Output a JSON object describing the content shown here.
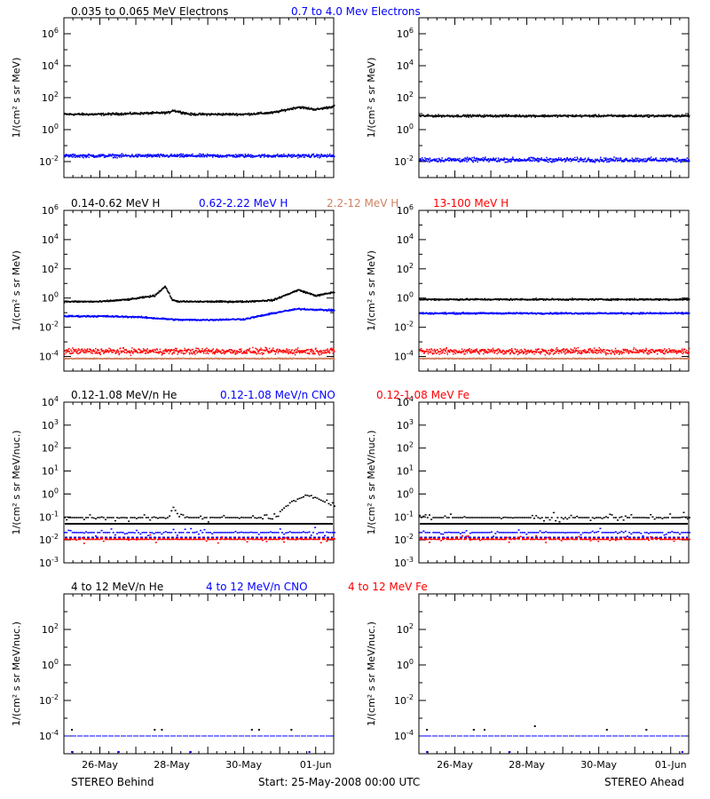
{
  "colors": {
    "black": "#000000",
    "blue": "#0000ff",
    "red": "#ff0000",
    "brown": "#d08060"
  },
  "rows": [
    {
      "legend": [
        {
          "text": "0.035 to 0.065 MeV Electrons",
          "color": "black"
        },
        {
          "text": "0.7 to 4.0 Mev Electrons",
          "color": "blue"
        }
      ]
    },
    {
      "legend": [
        {
          "text": "0.14-0.62 MeV H",
          "color": "black"
        },
        {
          "text": "0.62-2.22 MeV H",
          "color": "blue"
        },
        {
          "text": "2.2-12 MeV H",
          "color": "brown"
        },
        {
          "text": "13-100 MeV H",
          "color": "red"
        }
      ]
    },
    {
      "legend": [
        {
          "text": "0.12-1.08 MeV/n He",
          "color": "black"
        },
        {
          "text": "0.12-1.08 MeV/n CNO",
          "color": "blue"
        },
        {
          "text": "0.12-1.08 MeV Fe",
          "color": "red"
        }
      ]
    },
    {
      "legend": [
        {
          "text": "4 to 12 MeV/n He",
          "color": "black"
        },
        {
          "text": "4 to 12 MeV/n CNO",
          "color": "blue"
        },
        {
          "text": "4 to 12 MeV Fe",
          "color": "red"
        }
      ]
    }
  ],
  "footer": {
    "left": "STEREO Behind",
    "center": "Start: 25-May-2008 00:00 UTC",
    "right": "STEREO Ahead"
  },
  "chart_data": [
    {
      "type": "scatter",
      "panel": "electrons-behind",
      "spacecraft": "STEREO Behind",
      "ylabel": "1/(cm² s sr MeV)",
      "yscale": "log",
      "ylim_exp": [
        -3,
        7
      ],
      "ytick_exps": [
        -2,
        0,
        2,
        4,
        6
      ],
      "xlim_days": [
        0,
        7.5
      ],
      "series": [
        {
          "name": "0.035 to 0.065 MeV Electrons",
          "color": "black",
          "x": [
            0,
            1,
            2,
            2.9,
            3.0,
            3.5,
            4,
            5,
            5.8,
            6.5,
            7,
            7.5
          ],
          "log10_y": [
            1.0,
            1.0,
            1.05,
            1.1,
            1.25,
            1.0,
            1.0,
            1.0,
            1.1,
            1.45,
            1.3,
            1.5
          ],
          "scatter_decades": 0.1
        },
        {
          "name": "0.7 to 4.0 Mev Electrons",
          "color": "blue",
          "x": [
            0,
            1,
            2,
            3,
            4,
            5,
            6,
            7,
            7.5
          ],
          "log10_y": [
            -1.6,
            -1.6,
            -1.6,
            -1.6,
            -1.6,
            -1.6,
            -1.6,
            -1.6,
            -1.6
          ],
          "scatter_decades": 0.15
        }
      ]
    },
    {
      "type": "scatter",
      "panel": "electrons-ahead",
      "spacecraft": "STEREO Ahead",
      "ylabel": "1/(cm² s sr MeV)",
      "yscale": "log",
      "ylim_exp": [
        -3,
        7
      ],
      "ytick_exps": [
        -2,
        0,
        2,
        4,
        6
      ],
      "xlim_days": [
        0,
        7.5
      ],
      "series": [
        {
          "name": "0.035 to 0.065 MeV Electrons",
          "color": "black",
          "x": [
            0,
            2,
            4,
            6,
            7.5
          ],
          "log10_y": [
            0.9,
            0.9,
            0.9,
            0.9,
            0.9
          ],
          "scatter_decades": 0.1
        },
        {
          "name": "0.7 to 4.0 Mev Electrons",
          "color": "blue",
          "x": [
            0,
            2,
            4,
            6,
            7.5
          ],
          "log10_y": [
            -1.85,
            -1.85,
            -1.85,
            -1.85,
            -1.85
          ],
          "scatter_decades": 0.2
        }
      ]
    },
    {
      "type": "scatter",
      "panel": "protons-behind",
      "spacecraft": "STEREO Behind",
      "ylabel": "1/(cm² s sr MeV)",
      "yscale": "log",
      "ylim_exp": [
        -5,
        6
      ],
      "ytick_exps": [
        -4,
        -2,
        0,
        2,
        4,
        6
      ],
      "xlim_days": [
        0,
        7.5
      ],
      "series": [
        {
          "name": "0.14-0.62 MeV H",
          "color": "black",
          "x": [
            0,
            1,
            1.8,
            2.5,
            2.8,
            3.0,
            3.2,
            4,
            5,
            5.8,
            6.5,
            7,
            7.5
          ],
          "log10_y": [
            -0.2,
            -0.2,
            -0.05,
            0.2,
            0.85,
            -0.1,
            -0.2,
            -0.2,
            -0.2,
            -0.1,
            0.6,
            0.2,
            0.45
          ],
          "scatter_decades": 0.08
        },
        {
          "name": "0.62-2.22 MeV H",
          "color": "blue",
          "x": [
            0,
            1,
            2,
            3.2,
            4,
            5,
            6,
            6.5,
            7.5
          ],
          "log10_y": [
            -1.2,
            -1.2,
            -1.25,
            -1.45,
            -1.45,
            -1.4,
            -0.9,
            -0.7,
            -0.8
          ],
          "scatter_decades": 0.08
        },
        {
          "name": "2.2-12 MeV H",
          "color": "brown",
          "x": [
            0,
            7.5
          ],
          "log10_y": [
            -4.1,
            -4.1
          ],
          "scatter_decades": 0.05
        },
        {
          "name": "13-100 MeV H",
          "color": "red",
          "x": [
            0,
            7.5
          ],
          "log10_y": [
            -3.6,
            -3.6
          ],
          "scatter_decades": 0.3
        }
      ]
    },
    {
      "type": "scatter",
      "panel": "protons-ahead",
      "spacecraft": "STEREO Ahead",
      "ylabel": "1/(cm² s sr MeV)",
      "yscale": "log",
      "ylim_exp": [
        -5,
        6
      ],
      "ytick_exps": [
        -4,
        -2,
        0,
        2,
        4,
        6
      ],
      "xlim_days": [
        0,
        7.5
      ],
      "series": [
        {
          "name": "0.14-0.62 MeV H",
          "color": "black",
          "x": [
            0,
            7.5
          ],
          "log10_y": [
            -0.05,
            -0.05
          ],
          "scatter_decades": 0.08
        },
        {
          "name": "0.62-2.22 MeV H",
          "color": "blue",
          "x": [
            0,
            7.5
          ],
          "log10_y": [
            -1.0,
            -1.0
          ],
          "scatter_decades": 0.08
        },
        {
          "name": "2.2-12 MeV H",
          "color": "brown",
          "x": [
            0,
            7.5
          ],
          "log10_y": [
            -4.1,
            -4.1
          ],
          "scatter_decades": 0.05
        },
        {
          "name": "13-100 MeV H",
          "color": "red",
          "x": [
            0,
            7.5
          ],
          "log10_y": [
            -3.6,
            -3.6
          ],
          "scatter_decades": 0.3
        }
      ]
    },
    {
      "type": "scatter",
      "panel": "suprathermal-ions-behind",
      "spacecraft": "STEREO Behind",
      "ylabel": "1/(cm² s sr MeV/nuc.)",
      "yscale": "log",
      "ylim_exp": [
        -3,
        4
      ],
      "ytick_exps": [
        -3,
        -2,
        -1,
        0,
        1,
        2,
        3,
        4
      ],
      "xlim_days": [
        0,
        7.5
      ],
      "series": [
        {
          "name": "0.12-1.08 MeV/n He",
          "color": "black",
          "x": [
            0,
            2.9,
            3.0,
            3.2,
            5.8,
            6.3,
            6.8,
            7.2,
            7.5
          ],
          "log10_y": [
            -1.0,
            -1.0,
            -0.5,
            -1.0,
            -1.0,
            -0.3,
            0.0,
            -0.3,
            -0.5
          ],
          "floor_log10": -1.3
        },
        {
          "name": "0.12-1.08 MeV/n CNO",
          "color": "blue",
          "x": [
            0,
            7.5
          ],
          "log10_y": [
            -1.65,
            -1.65
          ],
          "floor_log10": -1.9
        },
        {
          "name": "0.12-1.08 MeV Fe",
          "color": "red",
          "x": [
            0,
            7.5
          ],
          "log10_y": [
            -1.95,
            -1.95
          ],
          "floor_log10": -1.95
        }
      ]
    },
    {
      "type": "scatter",
      "panel": "suprathermal-ions-ahead",
      "spacecraft": "STEREO Ahead",
      "ylabel": "1/(cm² s sr MeV/nuc.)",
      "yscale": "log",
      "ylim_exp": [
        -3,
        4
      ],
      "ytick_exps": [
        -3,
        -2,
        -1,
        0,
        1,
        2,
        3,
        4
      ],
      "xlim_days": [
        0,
        7.5
      ],
      "series": [
        {
          "name": "0.12-1.08 MeV/n He",
          "color": "black",
          "x": [
            0,
            7.5
          ],
          "log10_y": [
            -1.0,
            -1.0
          ],
          "floor_log10": -1.3
        },
        {
          "name": "0.12-1.08 MeV/n CNO",
          "color": "blue",
          "x": [
            0,
            7.5
          ],
          "log10_y": [
            -1.65,
            -1.65
          ],
          "floor_log10": -1.9
        },
        {
          "name": "0.12-1.08 MeV Fe",
          "color": "red",
          "x": [
            0,
            7.5
          ],
          "log10_y": [
            -1.95,
            -1.95
          ],
          "floor_log10": -1.95
        }
      ]
    },
    {
      "type": "scatter",
      "panel": "energetic-ions-behind",
      "spacecraft": "STEREO Behind",
      "ylabel": "1/(cm² s sr MeV/nuc.)",
      "yscale": "log",
      "ylim_exp": [
        -5,
        4
      ],
      "ytick_exps": [
        -4,
        -2,
        0,
        2
      ],
      "xlim_days": [
        0,
        7.5
      ],
      "series": [
        {
          "name": "4 to 12 MeV/n He",
          "color": "black",
          "x": [
            0.2,
            2.5,
            2.7,
            5.2,
            5.4,
            6.3
          ],
          "log10_y": [
            -3.6,
            -3.6,
            -3.6,
            -3.6,
            -3.6,
            -3.6
          ],
          "floor_log10": -4.0
        },
        {
          "name": "4 to 12 MeV/n CNO",
          "color": "blue",
          "x": [
            0.2,
            1.5,
            3.5,
            6.8
          ],
          "log10_y": [
            -4.85,
            -4.85,
            -4.85,
            -4.85
          ],
          "floor_log10": -4.0
        },
        {
          "name": "4 to 12 MeV Fe",
          "color": "red",
          "x": [],
          "log10_y": [],
          "floor_log10": -4.0
        }
      ]
    },
    {
      "type": "scatter",
      "panel": "energetic-ions-ahead",
      "spacecraft": "STEREO Ahead",
      "ylabel": "1/(cm² s sr MeV/nuc.)",
      "yscale": "log",
      "ylim_exp": [
        -5,
        4
      ],
      "ytick_exps": [
        -4,
        -2,
        0,
        2
      ],
      "xlim_days": [
        0,
        7.5
      ],
      "series": [
        {
          "name": "4 to 12 MeV/n He",
          "color": "black",
          "x": [
            0.2,
            1.5,
            1.8,
            3.2,
            5.2,
            6.3
          ],
          "log10_y": [
            -3.6,
            -3.6,
            -3.6,
            -3.4,
            -3.6,
            -3.6
          ],
          "floor_log10": -4.0
        },
        {
          "name": "4 to 12 MeV/n CNO",
          "color": "blue",
          "x": [
            0.2,
            2.5,
            7.3
          ],
          "log10_y": [
            -4.85,
            -4.85,
            -4.85
          ],
          "floor_log10": -4.0
        },
        {
          "name": "4 to 12 MeV Fe",
          "color": "red",
          "x": [],
          "log10_y": [],
          "floor_log10": -4.0
        }
      ]
    }
  ],
  "x_axis": {
    "tick_labels": [
      "26-May",
      "28-May",
      "30-May",
      "01-Jun"
    ],
    "tick_days": [
      1,
      3,
      5,
      7
    ],
    "xlim_days": [
      0,
      7.5
    ]
  }
}
